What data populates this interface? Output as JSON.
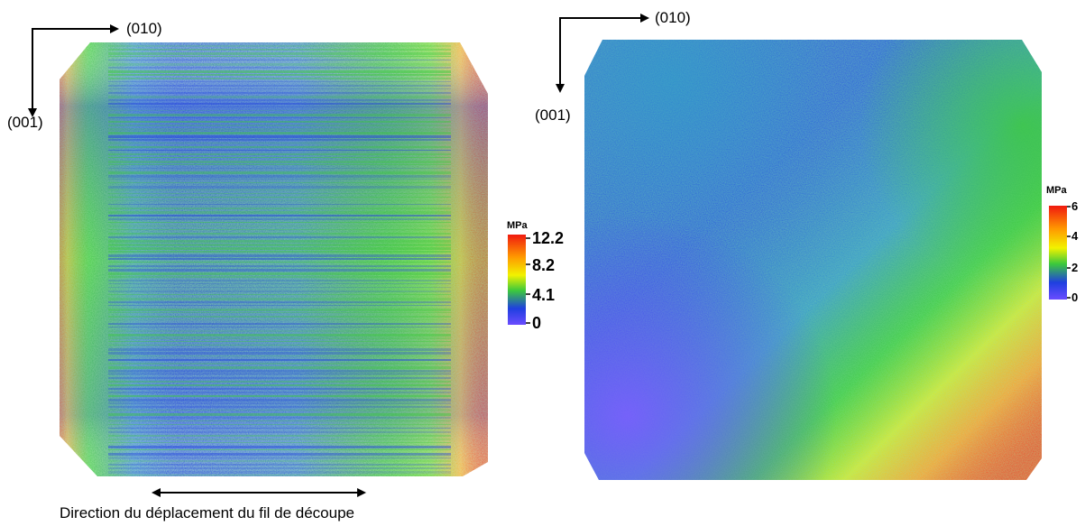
{
  "left_panel": {
    "axis_x": "(010)",
    "axis_y": "(001)",
    "colorbar": {
      "unit": "MPa",
      "ticks": [
        "12.2",
        "8.2",
        "4.1",
        "0"
      ]
    },
    "caption": "Direction du déplacement du fil de découpe"
  },
  "right_panel": {
    "axis_x": "(010)",
    "axis_y": "(001)",
    "colorbar": {
      "unit": "MPa",
      "ticks": [
        "6",
        "4",
        "2",
        "0"
      ]
    }
  },
  "colors": {
    "low": "#5a3cff",
    "blue": "#1f3fe0",
    "green": "#3cc93c",
    "yellow": "#f2f200",
    "orange": "#ff9a00",
    "red": "#f0190f"
  }
}
